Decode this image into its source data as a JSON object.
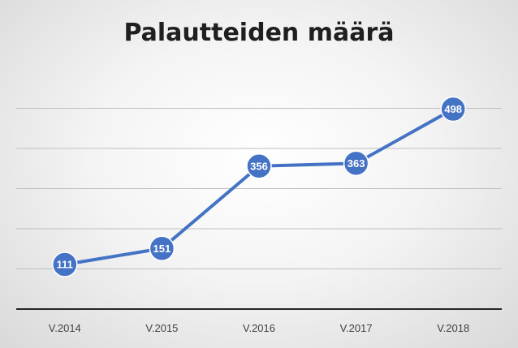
{
  "chart_data": {
    "type": "line",
    "title": "Palautteiden määrä",
    "categories": [
      "V.2014",
      "V.2015",
      "V.2016",
      "V.2017",
      "V.2018"
    ],
    "series": [
      {
        "values": [
          111,
          151,
          356,
          363,
          498
        ]
      }
    ],
    "data_labels": [
      "111",
      "151",
      "356",
      "363",
      "498"
    ],
    "ylim": [
      0,
      600
    ],
    "y_grid_step": 100,
    "grid": true,
    "legend": "none",
    "line_color": "#4472C4",
    "marker_color": "#4472C4",
    "marker_outline_color": "#ffffff",
    "gridline_color": "#bfbfbf",
    "axis_color": "#262626"
  }
}
